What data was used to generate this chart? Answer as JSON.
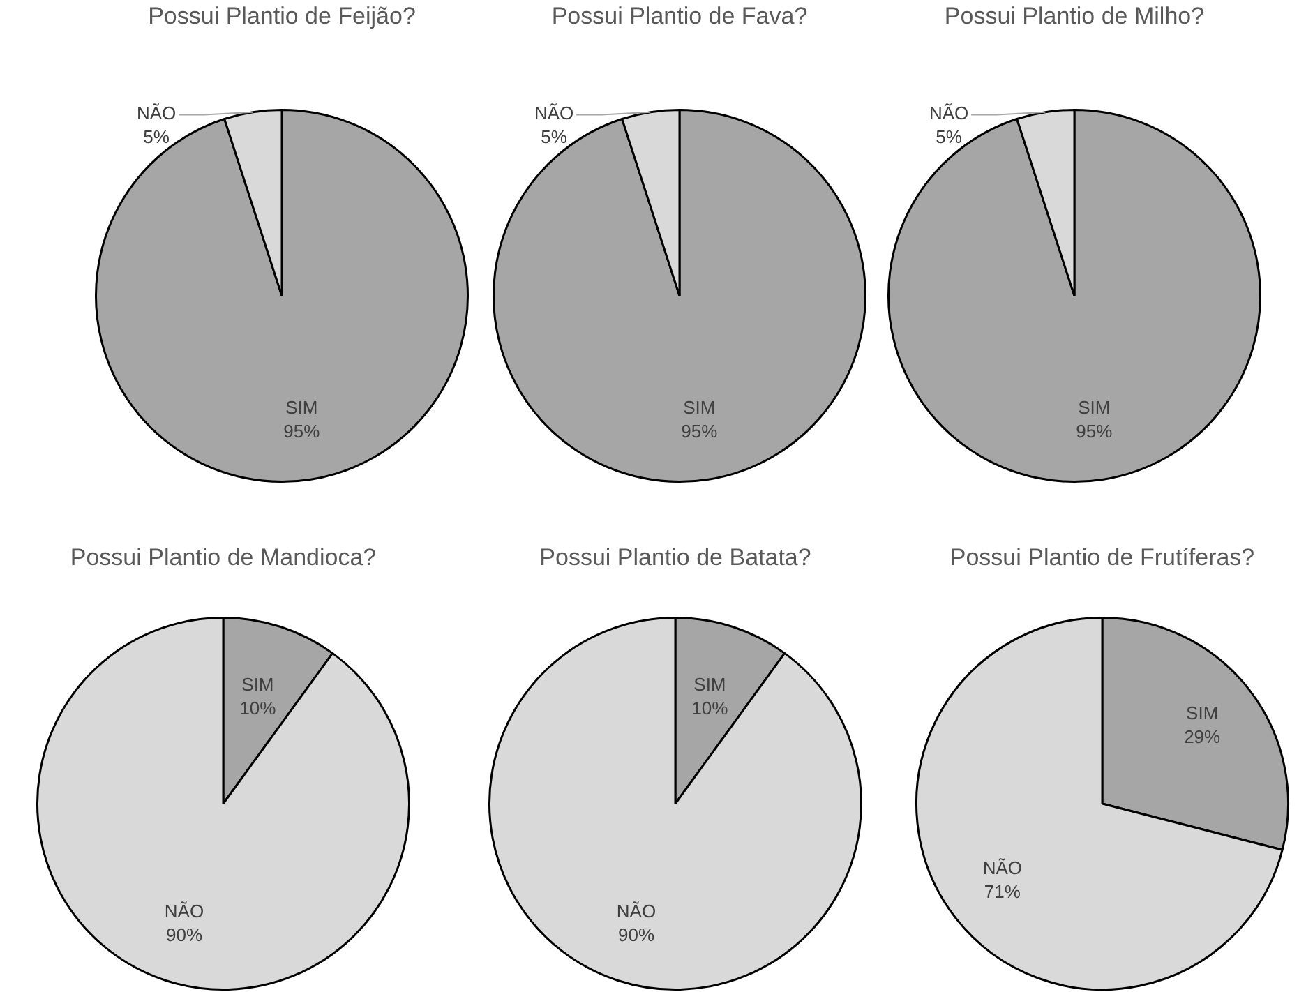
{
  "chart_data": [
    {
      "type": "pie",
      "title": "Possui Plantio de Feijão?",
      "categories": [
        "SIM",
        "NÃO"
      ],
      "values": [
        95,
        5
      ],
      "colors": [
        "#a6a6a6",
        "#d9d9d9"
      ],
      "value_labels": [
        "95%",
        "5%"
      ],
      "legend": false
    },
    {
      "type": "pie",
      "title": "Possui Plantio de Fava?",
      "categories": [
        "SIM",
        "NÃO"
      ],
      "values": [
        95,
        5
      ],
      "colors": [
        "#a6a6a6",
        "#d9d9d9"
      ],
      "value_labels": [
        "95%",
        "5%"
      ],
      "legend": false
    },
    {
      "type": "pie",
      "title": "Possui Plantio de Milho?",
      "categories": [
        "SIM",
        "NÃO"
      ],
      "values": [
        95,
        5
      ],
      "colors": [
        "#a6a6a6",
        "#d9d9d9"
      ],
      "value_labels": [
        "95%",
        "5%"
      ],
      "legend": false
    },
    {
      "type": "pie",
      "title": "Possui Plantio de Mandioca?",
      "categories": [
        "SIM",
        "NÃO"
      ],
      "values": [
        10,
        90
      ],
      "colors": [
        "#a6a6a6",
        "#d9d9d9"
      ],
      "value_labels": [
        "10%",
        "90%"
      ],
      "legend": false
    },
    {
      "type": "pie",
      "title": "Possui Plantio de Batata?",
      "categories": [
        "SIM",
        "NÃO"
      ],
      "values": [
        10,
        90
      ],
      "colors": [
        "#a6a6a6",
        "#d9d9d9"
      ],
      "value_labels": [
        "10%",
        "90%"
      ],
      "legend": false
    },
    {
      "type": "pie",
      "title": "Possui Plantio de Frutíferas?",
      "categories": [
        "SIM",
        "NÃO"
      ],
      "values": [
        29,
        71
      ],
      "colors": [
        "#a6a6a6",
        "#d9d9d9"
      ],
      "value_labels": [
        "29%",
        "71%"
      ],
      "legend": false
    }
  ]
}
